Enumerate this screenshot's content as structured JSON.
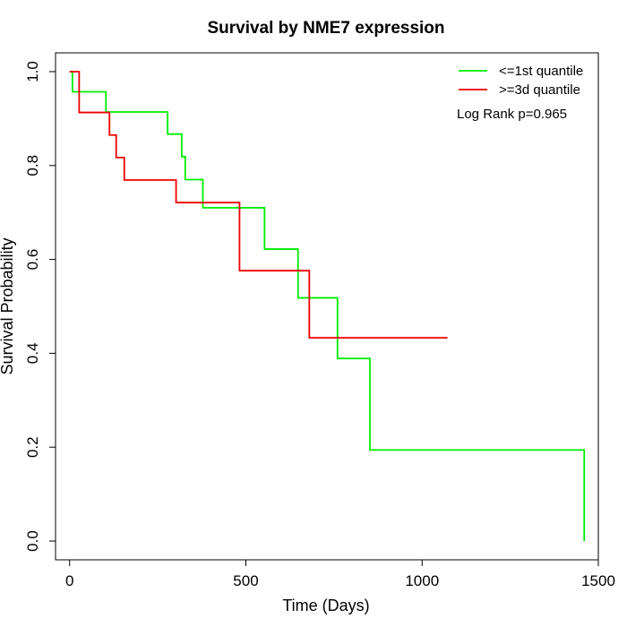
{
  "chart_data": {
    "type": "line",
    "title": "Survival by NME7 expression",
    "xlabel": "Time (Days)",
    "ylabel": "Survival Probability",
    "xlim": [
      -40,
      1500
    ],
    "ylim": [
      -0.04,
      1.04
    ],
    "xticks": [
      0,
      500,
      1000,
      1500
    ],
    "xtick_labels": [
      "0",
      "500",
      "1000",
      "1500"
    ],
    "yticks": [
      0.0,
      0.2,
      0.4,
      0.6,
      0.8,
      1.0
    ],
    "ytick_labels": [
      "0.0",
      "0.2",
      "0.4",
      "0.6",
      "0.8",
      "1.0"
    ],
    "grid": false,
    "legend_position": "top-right",
    "annotation": "Log Rank p=0.965",
    "series": [
      {
        "name": "<=1st quantile",
        "color": "#00ee00",
        "step": true,
        "x": [
          0,
          8,
          103,
          278,
          318,
          328,
          378,
          553,
          648,
          760,
          852,
          1460
        ],
        "y": [
          1.0,
          0.957,
          0.914,
          0.867,
          0.819,
          0.77,
          0.71,
          0.622,
          0.518,
          0.389,
          0.194,
          0.0
        ]
      },
      {
        "name": ">=3d quantile",
        "color": "#ee0000",
        "step": true,
        "x": [
          0,
          27,
          113,
          132,
          155,
          302,
          482,
          680,
          1072
        ],
        "y": [
          1.0,
          0.913,
          0.865,
          0.817,
          0.769,
          0.721,
          0.576,
          0.433,
          0.433
        ]
      }
    ]
  }
}
